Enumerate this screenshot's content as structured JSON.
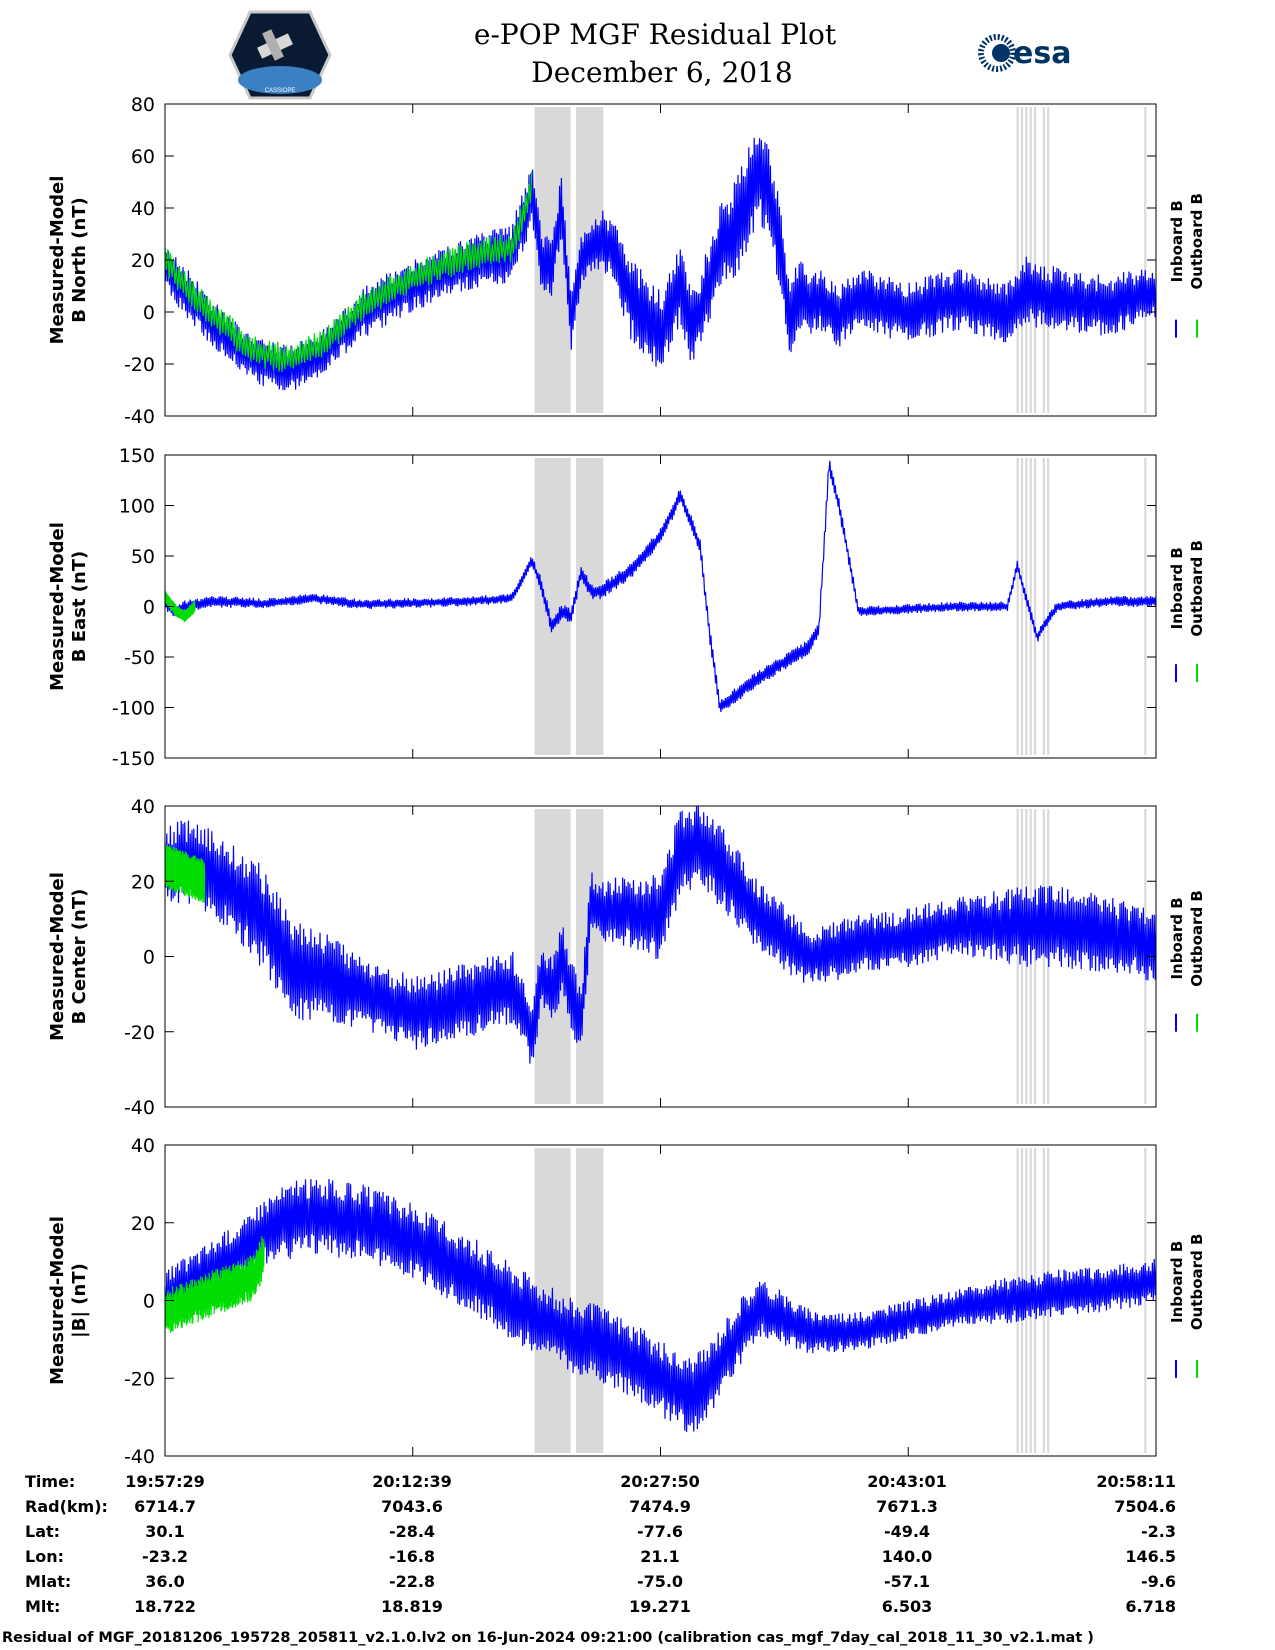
{
  "title_line1": "e-POP MGF Residual Plot",
  "title_line2": "December 6, 2018",
  "logos": {
    "left": {
      "name": "cassiope-logo",
      "text": "CASSIOPE"
    },
    "right": {
      "name": "esa-logo",
      "text": "esa"
    }
  },
  "chart_data": [
    {
      "type": "line",
      "ylabel_line1": "Measured-Model",
      "ylabel_line2": "B North (nT)",
      "ylim": [
        -40,
        80
      ],
      "yticks": [
        "80",
        "60",
        "40",
        "20",
        "0",
        "-20",
        "-40"
      ],
      "legend": [
        "Inboard B",
        "Outboard B"
      ],
      "series": [
        {
          "name": "Inboard B",
          "color": "#0000ff",
          "x": [
            0,
            0.02,
            0.05,
            0.08,
            0.1,
            0.13,
            0.16,
            0.2,
            0.25,
            0.3,
            0.35,
            0.37,
            0.38,
            0.39,
            0.4,
            0.41,
            0.42,
            0.43,
            0.44,
            0.45,
            0.47,
            0.5,
            0.52,
            0.53,
            0.54,
            0.56,
            0.58,
            0.6,
            0.62,
            0.63,
            0.64,
            0.65,
            0.66,
            0.68,
            0.7,
            0.75,
            0.8,
            0.85,
            0.87,
            0.9,
            0.95,
            1.0
          ],
          "y": [
            18,
            8,
            -5,
            -15,
            -20,
            -22,
            -15,
            0,
            10,
            18,
            22,
            45,
            20,
            15,
            42,
            -5,
            20,
            25,
            28,
            25,
            5,
            -8,
            10,
            -5,
            0,
            25,
            35,
            55,
            30,
            -5,
            8,
            2,
            5,
            -2,
            5,
            0,
            5,
            0,
            8,
            5,
            2,
            8
          ],
          "amp": [
            10,
            10,
            9,
            9,
            9,
            9,
            9,
            10,
            10,
            10,
            12,
            12,
            12,
            12,
            12,
            12,
            12,
            12,
            12,
            12,
            16,
            16,
            16,
            16,
            16,
            16,
            20,
            20,
            20,
            16,
            14,
            14,
            12,
            12,
            12,
            12,
            12,
            12,
            14,
            12,
            12,
            10
          ]
        },
        {
          "name": "Outboard B",
          "color": "#00dd00",
          "x": [
            0,
            0.02,
            0.05,
            0.08,
            0.1,
            0.13,
            0.16,
            0.2,
            0.25,
            0.3,
            0.35,
            0.37
          ],
          "y": [
            20,
            10,
            -2,
            -12,
            -16,
            -18,
            -12,
            3,
            13,
            21,
            25,
            48
          ]
        }
      ],
      "shaded": [
        [
          0.3729,
          0.4093
        ],
        [
          0.4148,
          0.4424
        ],
        [
          0.8593,
          0.8615
        ],
        [
          0.8637,
          0.8659
        ],
        [
          0.8681,
          0.8703
        ],
        [
          0.8725,
          0.8747
        ],
        [
          0.8769,
          0.8791
        ],
        [
          0.8857,
          0.8879
        ],
        [
          0.8901,
          0.8923
        ],
        [
          0.9881,
          0.9903
        ]
      ]
    },
    {
      "type": "line",
      "ylabel_line1": "Measured-Model",
      "ylabel_line2": "B East (nT)",
      "ylim": [
        -150,
        150
      ],
      "yticks": [
        "150",
        "100",
        "50",
        "0",
        "-50",
        "-100",
        "-150"
      ],
      "legend": [
        "Inboard B",
        "Outboard B"
      ],
      "series": [
        {
          "name": "Inboard B",
          "color": "#0000ff",
          "x": [
            0,
            0.01,
            0.02,
            0.05,
            0.1,
            0.15,
            0.2,
            0.3,
            0.35,
            0.37,
            0.38,
            0.39,
            0.4,
            0.41,
            0.42,
            0.43,
            0.44,
            0.47,
            0.5,
            0.52,
            0.54,
            0.55,
            0.56,
            0.58,
            0.6,
            0.65,
            0.66,
            0.67,
            0.68,
            0.7,
            0.8,
            0.85,
            0.86,
            0.87,
            0.88,
            0.9,
            0.95,
            1.0
          ],
          "y": [
            5,
            -5,
            0,
            5,
            3,
            8,
            2,
            5,
            8,
            45,
            20,
            -20,
            -5,
            -10,
            35,
            15,
            15,
            35,
            70,
            110,
            60,
            -30,
            -100,
            -85,
            -70,
            -40,
            -20,
            140,
            100,
            -5,
            0,
            0,
            40,
            5,
            -30,
            0,
            5,
            5
          ],
          "amp": [
            8,
            8,
            6,
            6,
            5,
            5,
            5,
            5,
            5,
            6,
            8,
            8,
            8,
            8,
            8,
            8,
            8,
            8,
            8,
            8,
            8,
            8,
            8,
            8,
            8,
            8,
            8,
            8,
            8,
            5,
            5,
            5,
            6,
            6,
            6,
            5,
            5,
            6
          ]
        },
        {
          "name": "Outboard B",
          "color": "#00dd00",
          "x": [
            0,
            0.01,
            0.02,
            0.03
          ],
          "y": [
            10,
            -3,
            -10,
            0
          ]
        }
      ],
      "shaded": [
        [
          0.3729,
          0.4093
        ],
        [
          0.4148,
          0.4424
        ],
        [
          0.8593,
          0.8615
        ],
        [
          0.8637,
          0.8659
        ],
        [
          0.8681,
          0.8703
        ],
        [
          0.8725,
          0.8747
        ],
        [
          0.8769,
          0.8791
        ],
        [
          0.8857,
          0.8879
        ],
        [
          0.8901,
          0.8923
        ],
        [
          0.9881,
          0.9903
        ]
      ]
    },
    {
      "type": "line",
      "ylabel_line1": "Measured-Model",
      "ylabel_line2": "B Center (nT)",
      "ylim": [
        -40,
        40
      ],
      "yticks": [
        "40",
        "20",
        "0",
        "-20",
        "-40"
      ],
      "legend": [
        "Inboard B",
        "Outboard B"
      ],
      "series": [
        {
          "name": "Inboard B",
          "color": "#0000ff",
          "x": [
            0,
            0.03,
            0.06,
            0.1,
            0.13,
            0.16,
            0.2,
            0.25,
            0.3,
            0.35,
            0.37,
            0.38,
            0.39,
            0.4,
            0.41,
            0.42,
            0.43,
            0.44,
            0.47,
            0.5,
            0.52,
            0.54,
            0.56,
            0.6,
            0.65,
            0.7,
            0.75,
            0.8,
            0.85,
            0.9,
            0.95,
            1.0
          ],
          "y": [
            25,
            25,
            20,
            10,
            -3,
            -5,
            -10,
            -15,
            -12,
            -8,
            -20,
            -5,
            -10,
            0,
            -10,
            -18,
            15,
            12,
            12,
            10,
            28,
            30,
            25,
            10,
            0,
            3,
            5,
            8,
            8,
            8,
            6,
            3
          ],
          "amp": [
            10,
            12,
            12,
            14,
            14,
            12,
            10,
            10,
            10,
            10,
            10,
            10,
            10,
            10,
            10,
            10,
            8,
            8,
            10,
            12,
            12,
            12,
            12,
            10,
            8,
            8,
            8,
            8,
            10,
            12,
            10,
            10
          ]
        },
        {
          "name": "Outboard B",
          "color": "#00dd00",
          "x": [
            0,
            0.02,
            0.04
          ],
          "y": [
            24,
            22,
            20
          ]
        }
      ],
      "shaded": [
        [
          0.3729,
          0.4093
        ],
        [
          0.4148,
          0.4424
        ],
        [
          0.8593,
          0.8615
        ],
        [
          0.8637,
          0.8659
        ],
        [
          0.8681,
          0.8703
        ],
        [
          0.8725,
          0.8747
        ],
        [
          0.8769,
          0.8791
        ],
        [
          0.8857,
          0.8879
        ],
        [
          0.8901,
          0.8923
        ],
        [
          0.9881,
          0.9903
        ]
      ]
    },
    {
      "type": "line",
      "ylabel_line1": "Measured-Model",
      "ylabel_line2": "|B| (nT)",
      "ylim": [
        -40,
        40
      ],
      "yticks": [
        "40",
        "20",
        "0",
        "-20",
        "-40"
      ],
      "legend": [
        "Inboard B",
        "Outboard B"
      ],
      "series": [
        {
          "name": "Inboard B",
          "color": "#0000ff",
          "x": [
            0,
            0.03,
            0.06,
            0.09,
            0.1,
            0.12,
            0.15,
            0.2,
            0.25,
            0.3,
            0.35,
            0.4,
            0.45,
            0.5,
            0.53,
            0.55,
            0.58,
            0.6,
            0.65,
            0.7,
            0.75,
            0.8,
            0.85,
            0.9,
            0.95,
            1.0
          ],
          "y": [
            0,
            5,
            10,
            15,
            18,
            20,
            22,
            20,
            15,
            8,
            0,
            -8,
            -12,
            -20,
            -25,
            -20,
            -8,
            -2,
            -8,
            -8,
            -5,
            -2,
            0,
            2,
            3,
            5
          ],
          "amp": [
            8,
            8,
            8,
            8,
            9,
            10,
            10,
            10,
            10,
            10,
            10,
            10,
            10,
            10,
            10,
            10,
            9,
            8,
            6,
            5,
            5,
            5,
            6,
            6,
            6,
            6
          ]
        },
        {
          "name": "Outboard B",
          "color": "#00dd00",
          "x": [
            0,
            0.03,
            0.06,
            0.09,
            0.1
          ],
          "y": [
            -3,
            0,
            3,
            6,
            12
          ]
        }
      ],
      "shaded": [
        [
          0.3729,
          0.4093
        ],
        [
          0.4148,
          0.4424
        ],
        [
          0.8593,
          0.8615
        ],
        [
          0.8637,
          0.8659
        ],
        [
          0.8681,
          0.8703
        ],
        [
          0.8725,
          0.8747
        ],
        [
          0.8769,
          0.8791
        ],
        [
          0.8857,
          0.8879
        ],
        [
          0.8901,
          0.8923
        ],
        [
          0.9881,
          0.9903
        ]
      ]
    }
  ],
  "orbit_table": {
    "labels": [
      "Time:",
      "Rad(km):",
      "Lat:",
      "Lon:",
      "Mlat:",
      "Mlt:"
    ],
    "columns": [
      [
        "19:57:29",
        "6714.7",
        "30.1",
        "-23.2",
        "36.0",
        "18.722"
      ],
      [
        "20:12:39",
        "7043.6",
        "-28.4",
        "-16.8",
        "-22.8",
        "18.819"
      ],
      [
        "20:27:50",
        "7474.9",
        "-77.6",
        "21.1",
        "-75.0",
        "19.271"
      ],
      [
        "20:43:01",
        "7671.3",
        "-49.4",
        "140.0",
        "-57.1",
        "6.503"
      ],
      [
        "20:58:11",
        "7504.6",
        "-2.3",
        "146.5",
        "-9.6",
        "6.718"
      ]
    ]
  },
  "footer": "Residual of MGF_20181206_195728_205811_v2.1.0.lv2 on 16-Jun-2024 09:21:00 (calibration cas_mgf_7day_cal_2018_11_30_v2.1.mat )"
}
